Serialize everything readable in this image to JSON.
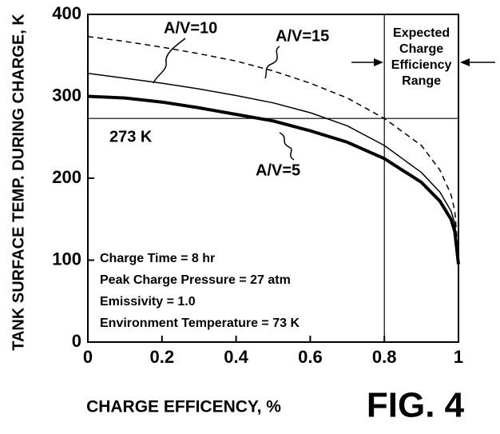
{
  "chart_data": {
    "type": "line",
    "xlabel": "CHARGE EFFICENCY, %",
    "ylabel": "TANK SURFACE TEMP. DURING CHARGE, K",
    "x": [
      0,
      0.1,
      0.2,
      0.3,
      0.4,
      0.5,
      0.6,
      0.7,
      0.8,
      0.9,
      0.95,
      0.98,
      0.99,
      1
    ],
    "series": [
      {
        "name": "A/V=5",
        "color": "#000000",
        "width": 4,
        "dashed": false,
        "values": [
          300,
          298,
          293,
          286,
          278,
          270,
          258,
          244,
          224,
          195,
          172,
          150,
          135,
          95
        ]
      },
      {
        "name": "A/V=10",
        "color": "#000000",
        "width": 1.5,
        "dashed": false,
        "values": [
          328,
          322,
          316,
          309,
          301,
          292,
          280,
          264,
          240,
          207,
          183,
          160,
          145,
          100
        ]
      },
      {
        "name": "A/V=15",
        "color": "#000000",
        "width": 1.5,
        "dashed": true,
        "values": [
          373,
          367,
          360,
          352,
          343,
          331,
          316,
          298,
          273,
          240,
          210,
          180,
          160,
          105
        ]
      }
    ],
    "xlim": [
      0,
      1
    ],
    "ylim": [
      0,
      400
    ],
    "xticks": [
      0,
      0.2,
      0.4,
      0.6,
      0.8,
      1
    ],
    "yticks": [
      0,
      100,
      200,
      300,
      400
    ],
    "hline": {
      "value": 273,
      "label": "273 K"
    },
    "vline": 0.8,
    "range_label": [
      "Expected",
      "Charge",
      "Efficiency",
      "Range"
    ],
    "conditions": [
      "Charge Time = 8 hr",
      "Peak Charge Pressure = 27 atm",
      "Emissivity = 1.0",
      "Environment Temperature = 73 K"
    ],
    "figure_label": "FIG. 4"
  }
}
